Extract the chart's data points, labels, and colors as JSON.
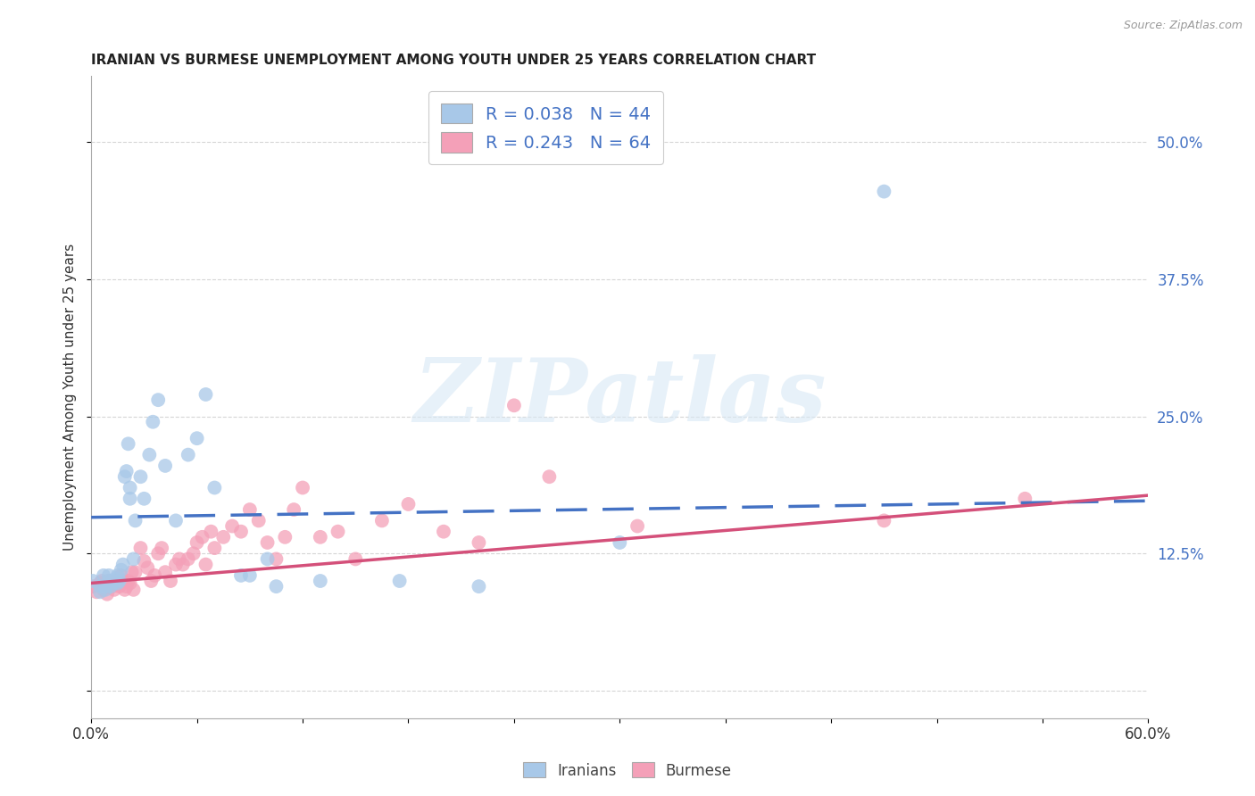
{
  "title": "IRANIAN VS BURMESE UNEMPLOYMENT AMONG YOUTH UNDER 25 YEARS CORRELATION CHART",
  "source": "Source: ZipAtlas.com",
  "ylabel": "Unemployment Among Youth under 25 years",
  "xlim": [
    0.0,
    0.6
  ],
  "ylim": [
    -0.025,
    0.56
  ],
  "xticks": [
    0.0,
    0.06,
    0.12,
    0.18,
    0.24,
    0.3,
    0.36,
    0.42,
    0.48,
    0.54,
    0.6
  ],
  "xticklabels_first": "0.0%",
  "xticklabels_last": "60.0%",
  "ytick_positions": [
    0.0,
    0.125,
    0.25,
    0.375,
    0.5
  ],
  "ytick_labels": [
    "",
    "12.5%",
    "25.0%",
    "37.5%",
    "50.0%"
  ],
  "legend_r_iranian": "R = 0.038",
  "legend_n_iranian": "N = 44",
  "legend_r_burmese": "R = 0.243",
  "legend_n_burmese": "N = 64",
  "color_iranian": "#a8c8e8",
  "color_burmese": "#f4a0b8",
  "color_line_iranian": "#4472c4",
  "color_line_burmese": "#d4507a",
  "background_color": "#ffffff",
  "grid_color": "#cccccc",
  "watermark_text": "ZIPatlas",
  "iranians_x": [
    0.001,
    0.005,
    0.005,
    0.007,
    0.008,
    0.008,
    0.01,
    0.01,
    0.011,
    0.012,
    0.013,
    0.014,
    0.015,
    0.015,
    0.016,
    0.017,
    0.018,
    0.019,
    0.02,
    0.021,
    0.022,
    0.022,
    0.024,
    0.025,
    0.028,
    0.03,
    0.033,
    0.035,
    0.038,
    0.042,
    0.048,
    0.055,
    0.06,
    0.065,
    0.07,
    0.085,
    0.09,
    0.1,
    0.105,
    0.13,
    0.175,
    0.22,
    0.3,
    0.45
  ],
  "iranians_y": [
    0.1,
    0.095,
    0.09,
    0.105,
    0.095,
    0.092,
    0.1,
    0.105,
    0.095,
    0.1,
    0.098,
    0.102,
    0.098,
    0.105,
    0.1,
    0.11,
    0.115,
    0.195,
    0.2,
    0.225,
    0.185,
    0.175,
    0.12,
    0.155,
    0.195,
    0.175,
    0.215,
    0.245,
    0.265,
    0.205,
    0.155,
    0.215,
    0.23,
    0.27,
    0.185,
    0.105,
    0.105,
    0.12,
    0.095,
    0.1,
    0.1,
    0.095,
    0.135,
    0.455
  ],
  "burmese_x": [
    0.001,
    0.003,
    0.005,
    0.006,
    0.007,
    0.008,
    0.009,
    0.01,
    0.011,
    0.012,
    0.013,
    0.014,
    0.015,
    0.016,
    0.017,
    0.018,
    0.019,
    0.02,
    0.021,
    0.022,
    0.023,
    0.024,
    0.025,
    0.028,
    0.03,
    0.032,
    0.034,
    0.036,
    0.038,
    0.04,
    0.042,
    0.045,
    0.048,
    0.05,
    0.052,
    0.055,
    0.058,
    0.06,
    0.063,
    0.065,
    0.068,
    0.07,
    0.075,
    0.08,
    0.085,
    0.09,
    0.095,
    0.1,
    0.105,
    0.11,
    0.115,
    0.12,
    0.13,
    0.14,
    0.15,
    0.165,
    0.18,
    0.2,
    0.22,
    0.24,
    0.26,
    0.31,
    0.45,
    0.53
  ],
  "burmese_y": [
    0.095,
    0.09,
    0.098,
    0.1,
    0.092,
    0.095,
    0.088,
    0.1,
    0.098,
    0.095,
    0.092,
    0.1,
    0.098,
    0.095,
    0.105,
    0.1,
    0.092,
    0.095,
    0.1,
    0.098,
    0.108,
    0.092,
    0.108,
    0.13,
    0.118,
    0.112,
    0.1,
    0.105,
    0.125,
    0.13,
    0.108,
    0.1,
    0.115,
    0.12,
    0.115,
    0.12,
    0.125,
    0.135,
    0.14,
    0.115,
    0.145,
    0.13,
    0.14,
    0.15,
    0.145,
    0.165,
    0.155,
    0.135,
    0.12,
    0.14,
    0.165,
    0.185,
    0.14,
    0.145,
    0.12,
    0.155,
    0.17,
    0.145,
    0.135,
    0.26,
    0.195,
    0.15,
    0.155,
    0.175
  ],
  "iranian_line_x": [
    0.0,
    0.6
  ],
  "iranian_line_y": [
    0.158,
    0.173
  ],
  "burmese_line_x": [
    0.0,
    0.6
  ],
  "burmese_line_y": [
    0.098,
    0.178
  ]
}
